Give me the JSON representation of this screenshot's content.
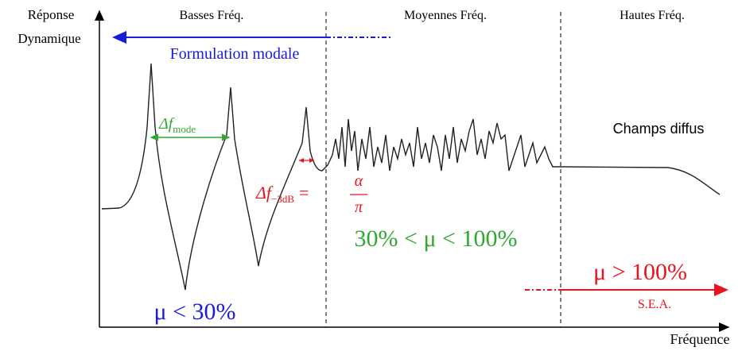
{
  "axes": {
    "y_label_line1": "Réponse",
    "y_label_line2": "Dynamique",
    "x_label": "Fréquence"
  },
  "zones": {
    "low": "Basses Fréq.",
    "mid": "Moyennes Fréq.",
    "high": "Hautes Fréq."
  },
  "methods": {
    "modal": "Formulation modale",
    "sea": "S.E.A.",
    "diffuse": "Champs diffus"
  },
  "delta_f_mode": {
    "symbol": "Δf",
    "sub": "mode"
  },
  "delta_f_3db": {
    "symbol": "Δf",
    "sub": "−3dB",
    "relation": "=",
    "numerator": "α",
    "denominator": "π"
  },
  "overlap": {
    "low": "μ < 30%",
    "mid": "30% < μ < 100%",
    "high": "μ > 100%"
  }
}
